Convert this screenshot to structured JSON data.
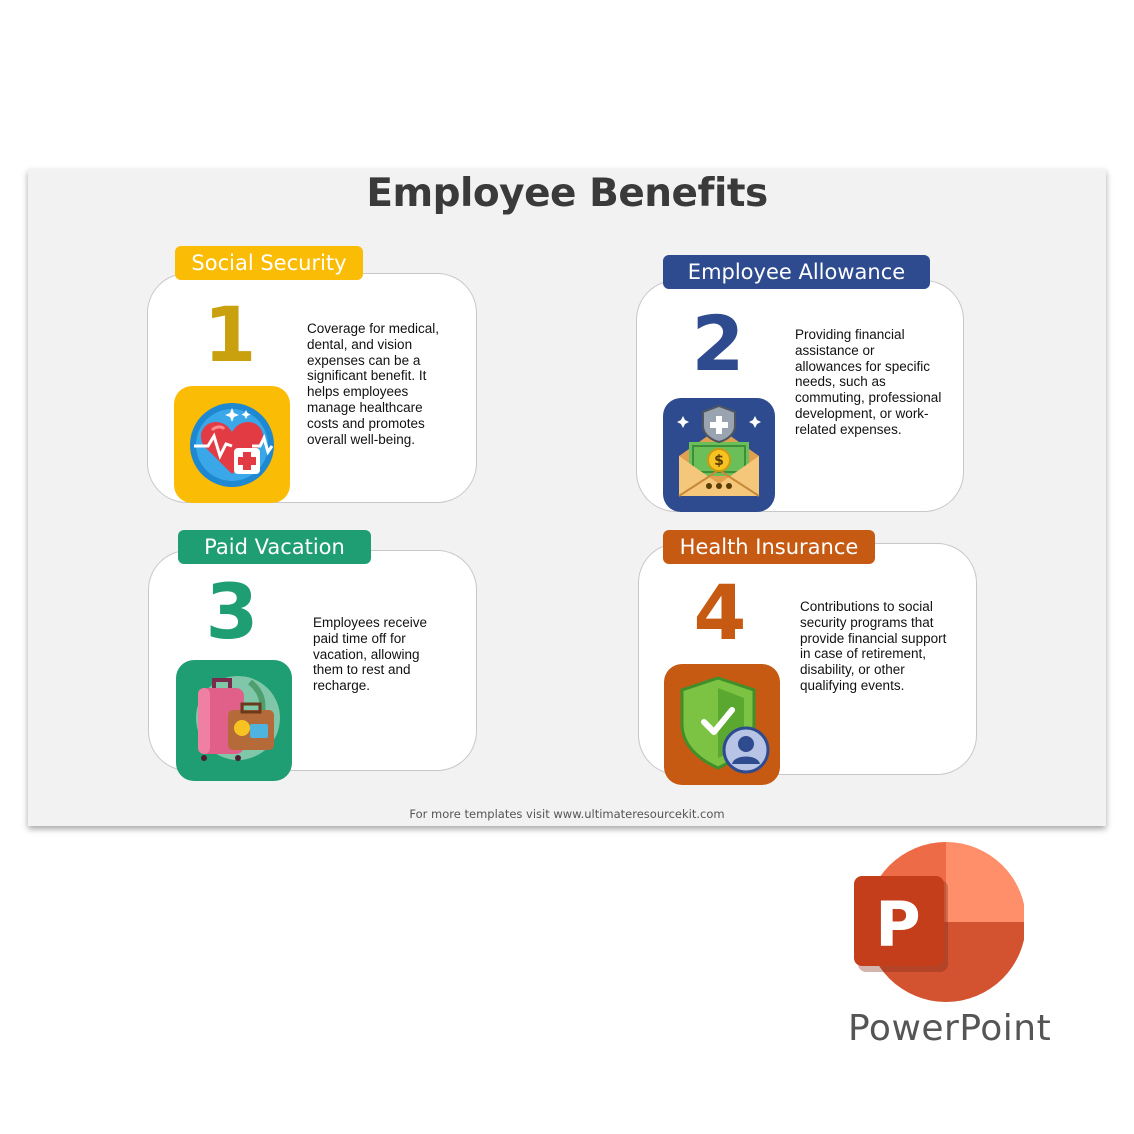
{
  "slide": {
    "title": "Employee Benefits",
    "footer": "For more templates visit www.ultimateresourcekit.com"
  },
  "cards": [
    {
      "tag": "Social Security",
      "number": "1",
      "color": "#fbbc05",
      "number_color": "#c9a00e",
      "icon": "heart-medical-icon",
      "description": "Coverage for medical, dental, and vision expenses can be a significant benefit. It helps employees manage healthcare costs and promotes overall well-being."
    },
    {
      "tag": "Employee Allowance",
      "number": "2",
      "color": "#2f4b8f",
      "number_color": "#2f4b8f",
      "icon": "money-envelope-icon",
      "description": "Providing financial assistance or allowances for specific needs, such as commuting, professional development, or work-related expenses."
    },
    {
      "tag": "Paid Vacation",
      "number": "3",
      "color": "#1f9e73",
      "number_color": "#1f9e73",
      "icon": "luggage-icon",
      "description": "Employees receive paid time off for vacation, allowing them to rest and recharge."
    },
    {
      "tag": "Health Insurance",
      "number": "4",
      "color": "#c75a12",
      "number_color": "#c75a12",
      "icon": "shield-person-icon",
      "description": "Contributions to social security programs that provide financial support in case of retirement, disability, or other qualifying events."
    }
  ],
  "branding": {
    "app_icon": "powerpoint-icon",
    "app_name": "PowerPoint"
  }
}
